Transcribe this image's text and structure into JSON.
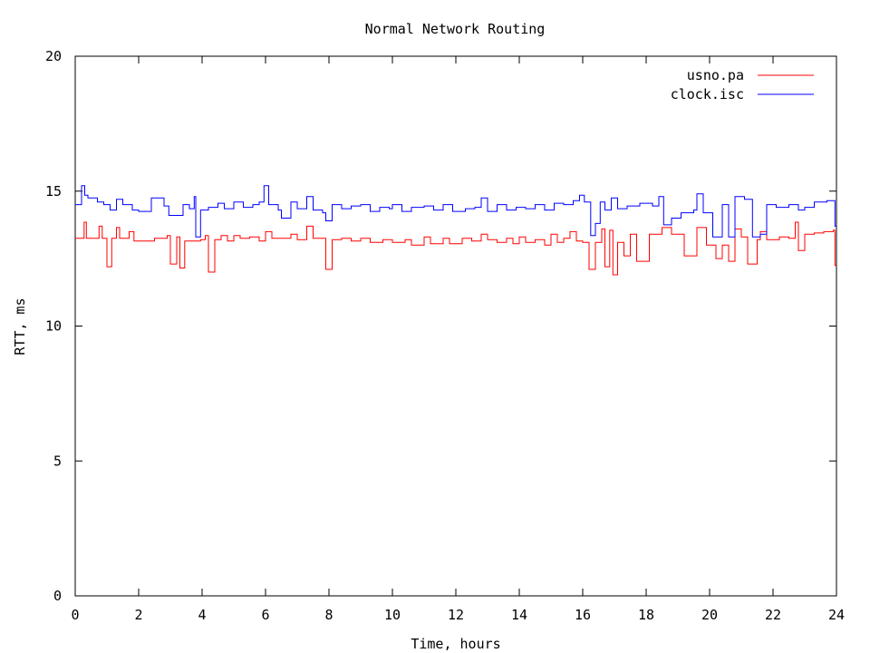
{
  "chart_data": {
    "type": "line",
    "title": "Normal Network Routing",
    "xlabel": "Time, hours",
    "ylabel": "RTT, ms",
    "xlim": [
      0,
      24
    ],
    "ylim": [
      0,
      20
    ],
    "xticks": [
      0,
      2,
      4,
      6,
      8,
      10,
      12,
      14,
      16,
      18,
      20,
      22,
      24
    ],
    "xtick_labels": [
      "0",
      "2",
      "4",
      "6",
      "8",
      "10",
      "12",
      "14",
      "16",
      "18",
      "20",
      "22",
      "24"
    ],
    "yticks": [
      0,
      5,
      10,
      15,
      20
    ],
    "ytick_labels": [
      "0",
      "5",
      "10",
      "15",
      "20"
    ],
    "grid": false,
    "legend_position": "top-right",
    "series": [
      {
        "name": "usno.pa",
        "color": "#ff0000",
        "step": true,
        "points": [
          [
            0.0,
            13.25
          ],
          [
            0.28,
            13.85
          ],
          [
            0.35,
            13.25
          ],
          [
            0.75,
            13.7
          ],
          [
            0.85,
            13.25
          ],
          [
            1.0,
            12.2
          ],
          [
            1.15,
            13.25
          ],
          [
            1.3,
            13.65
          ],
          [
            1.4,
            13.25
          ],
          [
            1.7,
            13.5
          ],
          [
            1.85,
            13.15
          ],
          [
            2.5,
            13.25
          ],
          [
            2.9,
            13.35
          ],
          [
            3.0,
            12.3
          ],
          [
            3.2,
            13.3
          ],
          [
            3.3,
            12.15
          ],
          [
            3.45,
            13.15
          ],
          [
            3.95,
            13.2
          ],
          [
            4.1,
            13.35
          ],
          [
            4.2,
            12.0
          ],
          [
            4.4,
            13.2
          ],
          [
            4.6,
            13.35
          ],
          [
            4.8,
            13.15
          ],
          [
            5.0,
            13.35
          ],
          [
            5.2,
            13.25
          ],
          [
            5.5,
            13.3
          ],
          [
            5.8,
            13.15
          ],
          [
            6.0,
            13.5
          ],
          [
            6.2,
            13.25
          ],
          [
            6.8,
            13.4
          ],
          [
            7.0,
            13.2
          ],
          [
            7.3,
            13.7
          ],
          [
            7.5,
            13.25
          ],
          [
            7.9,
            12.1
          ],
          [
            8.1,
            13.2
          ],
          [
            8.4,
            13.25
          ],
          [
            8.7,
            13.15
          ],
          [
            9.0,
            13.25
          ],
          [
            9.3,
            13.1
          ],
          [
            9.7,
            13.2
          ],
          [
            10.0,
            13.1
          ],
          [
            10.4,
            13.2
          ],
          [
            10.6,
            13.0
          ],
          [
            11.0,
            13.3
          ],
          [
            11.2,
            13.05
          ],
          [
            11.6,
            13.25
          ],
          [
            11.8,
            13.05
          ],
          [
            12.2,
            13.25
          ],
          [
            12.5,
            13.15
          ],
          [
            12.8,
            13.4
          ],
          [
            13.0,
            13.2
          ],
          [
            13.3,
            13.1
          ],
          [
            13.6,
            13.25
          ],
          [
            13.8,
            13.05
          ],
          [
            14.0,
            13.3
          ],
          [
            14.2,
            13.1
          ],
          [
            14.5,
            13.2
          ],
          [
            14.8,
            13.0
          ],
          [
            15.0,
            13.4
          ],
          [
            15.2,
            13.1
          ],
          [
            15.4,
            13.25
          ],
          [
            15.6,
            13.5
          ],
          [
            15.8,
            13.15
          ],
          [
            16.0,
            13.1
          ],
          [
            16.2,
            12.1
          ],
          [
            16.4,
            13.1
          ],
          [
            16.6,
            13.6
          ],
          [
            16.7,
            12.2
          ],
          [
            16.85,
            13.55
          ],
          [
            16.95,
            11.9
          ],
          [
            17.1,
            13.1
          ],
          [
            17.3,
            12.6
          ],
          [
            17.5,
            13.4
          ],
          [
            17.7,
            12.4
          ],
          [
            18.1,
            13.4
          ],
          [
            18.5,
            13.65
          ],
          [
            18.8,
            13.4
          ],
          [
            19.2,
            12.6
          ],
          [
            19.6,
            13.65
          ],
          [
            19.9,
            13.0
          ],
          [
            20.2,
            12.5
          ],
          [
            20.4,
            13.0
          ],
          [
            20.6,
            12.4
          ],
          [
            20.8,
            13.6
          ],
          [
            21.0,
            13.3
          ],
          [
            21.2,
            12.3
          ],
          [
            21.5,
            13.2
          ],
          [
            21.6,
            13.5
          ],
          [
            21.8,
            13.2
          ],
          [
            22.2,
            13.3
          ],
          [
            22.5,
            13.25
          ],
          [
            22.7,
            13.85
          ],
          [
            22.8,
            12.8
          ],
          [
            23.0,
            13.4
          ],
          [
            23.3,
            13.45
          ],
          [
            23.6,
            13.5
          ],
          [
            23.9,
            13.55
          ],
          [
            23.95,
            12.25
          ],
          [
            24.0,
            12.25
          ]
        ]
      },
      {
        "name": "clock.isc",
        "color": "#0000ff",
        "step": true,
        "points": [
          [
            0.0,
            14.5
          ],
          [
            0.2,
            15.2
          ],
          [
            0.3,
            14.85
          ],
          [
            0.4,
            14.75
          ],
          [
            0.7,
            14.6
          ],
          [
            0.9,
            14.5
          ],
          [
            1.1,
            14.3
          ],
          [
            1.3,
            14.7
          ],
          [
            1.5,
            14.5
          ],
          [
            1.8,
            14.3
          ],
          [
            2.0,
            14.25
          ],
          [
            2.4,
            14.75
          ],
          [
            2.7,
            14.75
          ],
          [
            2.8,
            14.45
          ],
          [
            2.95,
            14.1
          ],
          [
            3.4,
            14.5
          ],
          [
            3.6,
            14.35
          ],
          [
            3.75,
            14.8
          ],
          [
            3.8,
            13.3
          ],
          [
            3.95,
            14.3
          ],
          [
            4.2,
            14.4
          ],
          [
            4.5,
            14.55
          ],
          [
            4.7,
            14.35
          ],
          [
            5.0,
            14.6
          ],
          [
            5.3,
            14.4
          ],
          [
            5.6,
            14.5
          ],
          [
            5.8,
            14.6
          ],
          [
            5.95,
            15.2
          ],
          [
            6.1,
            14.5
          ],
          [
            6.4,
            14.3
          ],
          [
            6.5,
            14.0
          ],
          [
            6.8,
            14.6
          ],
          [
            7.0,
            14.35
          ],
          [
            7.3,
            14.8
          ],
          [
            7.5,
            14.3
          ],
          [
            7.8,
            14.2
          ],
          [
            7.9,
            13.9
          ],
          [
            8.1,
            14.5
          ],
          [
            8.4,
            14.35
          ],
          [
            8.7,
            14.45
          ],
          [
            9.0,
            14.5
          ],
          [
            9.3,
            14.25
          ],
          [
            9.6,
            14.4
          ],
          [
            9.9,
            14.35
          ],
          [
            10.0,
            14.5
          ],
          [
            10.3,
            14.25
          ],
          [
            10.6,
            14.4
          ],
          [
            11.0,
            14.45
          ],
          [
            11.3,
            14.3
          ],
          [
            11.6,
            14.5
          ],
          [
            11.9,
            14.25
          ],
          [
            12.3,
            14.35
          ],
          [
            12.6,
            14.4
          ],
          [
            12.8,
            14.75
          ],
          [
            13.0,
            14.25
          ],
          [
            13.3,
            14.5
          ],
          [
            13.6,
            14.3
          ],
          [
            13.9,
            14.4
          ],
          [
            14.2,
            14.35
          ],
          [
            14.5,
            14.5
          ],
          [
            14.8,
            14.3
          ],
          [
            15.1,
            14.55
          ],
          [
            15.4,
            14.5
          ],
          [
            15.7,
            14.65
          ],
          [
            15.9,
            14.85
          ],
          [
            16.05,
            14.6
          ],
          [
            16.25,
            13.35
          ],
          [
            16.4,
            13.8
          ],
          [
            16.55,
            14.6
          ],
          [
            16.7,
            14.3
          ],
          [
            16.9,
            14.75
          ],
          [
            17.1,
            14.35
          ],
          [
            17.4,
            14.45
          ],
          [
            17.8,
            14.55
          ],
          [
            18.2,
            14.45
          ],
          [
            18.4,
            14.8
          ],
          [
            18.55,
            13.75
          ],
          [
            18.8,
            14.0
          ],
          [
            19.1,
            14.2
          ],
          [
            19.5,
            14.3
          ],
          [
            19.6,
            14.9
          ],
          [
            19.8,
            14.2
          ],
          [
            20.1,
            13.3
          ],
          [
            20.4,
            14.5
          ],
          [
            20.6,
            13.3
          ],
          [
            20.8,
            14.8
          ],
          [
            21.1,
            14.7
          ],
          [
            21.35,
            13.3
          ],
          [
            21.6,
            13.4
          ],
          [
            21.8,
            14.5
          ],
          [
            22.1,
            14.4
          ],
          [
            22.5,
            14.5
          ],
          [
            22.8,
            14.3
          ],
          [
            23.0,
            14.4
          ],
          [
            23.3,
            14.6
          ],
          [
            23.7,
            14.65
          ],
          [
            23.95,
            13.7
          ],
          [
            24.0,
            13.7
          ]
        ]
      }
    ]
  }
}
